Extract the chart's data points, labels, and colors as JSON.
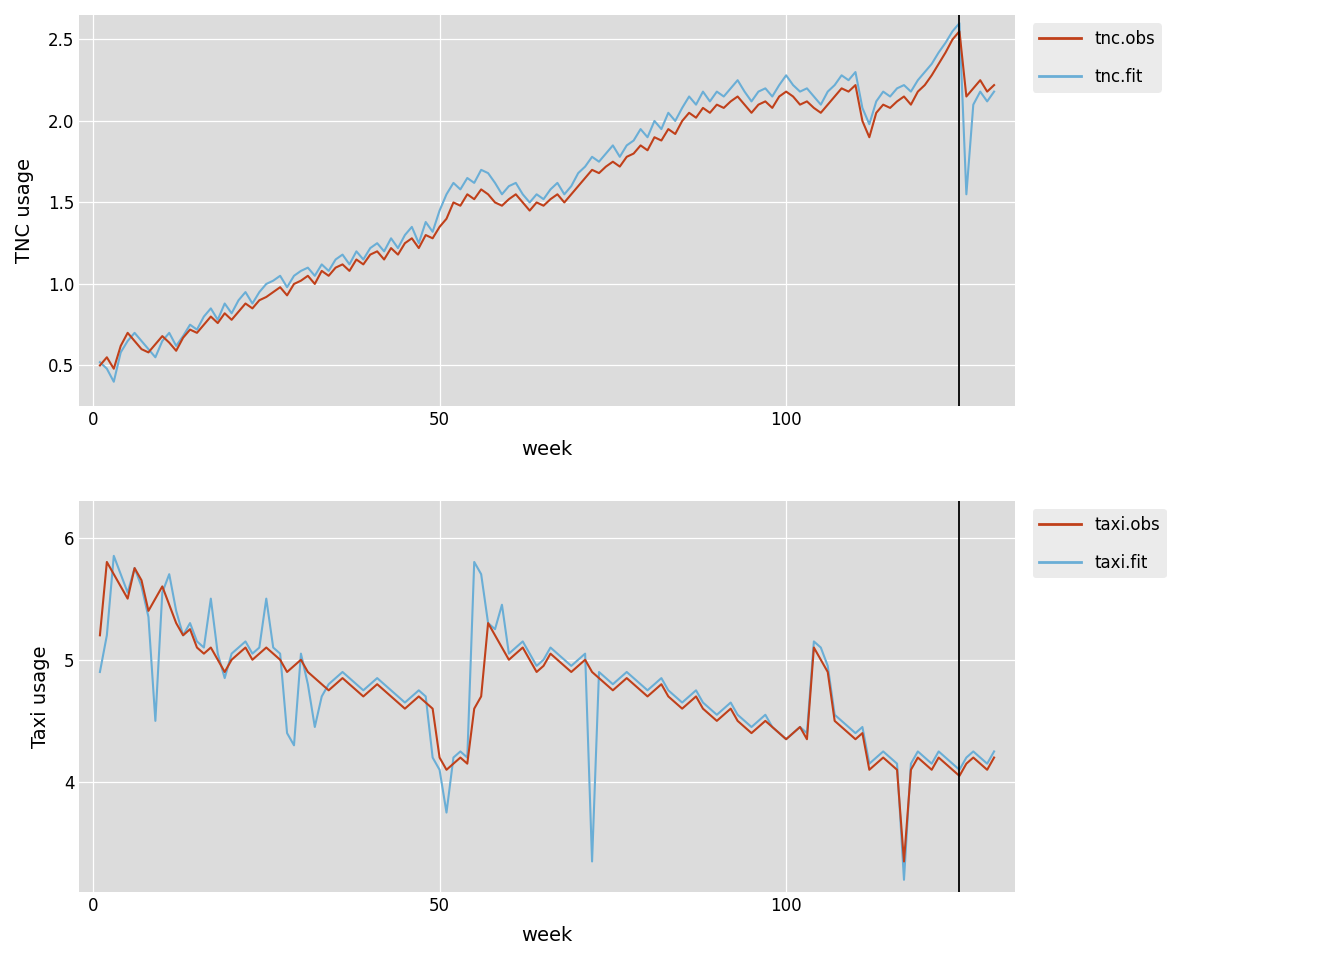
{
  "weeks": [
    1,
    2,
    3,
    4,
    5,
    6,
    7,
    8,
    9,
    10,
    11,
    12,
    13,
    14,
    15,
    16,
    17,
    18,
    19,
    20,
    21,
    22,
    23,
    24,
    25,
    26,
    27,
    28,
    29,
    30,
    31,
    32,
    33,
    34,
    35,
    36,
    37,
    38,
    39,
    40,
    41,
    42,
    43,
    44,
    45,
    46,
    47,
    48,
    49,
    50,
    51,
    52,
    53,
    54,
    55,
    56,
    57,
    58,
    59,
    60,
    61,
    62,
    63,
    64,
    65,
    66,
    67,
    68,
    69,
    70,
    71,
    72,
    73,
    74,
    75,
    76,
    77,
    78,
    79,
    80,
    81,
    82,
    83,
    84,
    85,
    86,
    87,
    88,
    89,
    90,
    91,
    92,
    93,
    94,
    95,
    96,
    97,
    98,
    99,
    100,
    101,
    102,
    103,
    104,
    105,
    106,
    107,
    108,
    109,
    110,
    111,
    112,
    113,
    114,
    115,
    116,
    117,
    118,
    119,
    120,
    121,
    122,
    123,
    124,
    125,
    126,
    127,
    128,
    129,
    130
  ],
  "tnc_obs": [
    0.5,
    0.55,
    0.48,
    0.62,
    0.7,
    0.65,
    0.6,
    0.58,
    0.63,
    0.68,
    0.64,
    0.59,
    0.67,
    0.72,
    0.7,
    0.75,
    0.8,
    0.76,
    0.82,
    0.78,
    0.83,
    0.88,
    0.85,
    0.9,
    0.92,
    0.95,
    0.98,
    0.93,
    1.0,
    1.02,
    1.05,
    1.0,
    1.08,
    1.05,
    1.1,
    1.12,
    1.08,
    1.15,
    1.12,
    1.18,
    1.2,
    1.15,
    1.22,
    1.18,
    1.25,
    1.28,
    1.22,
    1.3,
    1.28,
    1.35,
    1.4,
    1.5,
    1.48,
    1.55,
    1.52,
    1.58,
    1.55,
    1.5,
    1.48,
    1.52,
    1.55,
    1.5,
    1.45,
    1.5,
    1.48,
    1.52,
    1.55,
    1.5,
    1.55,
    1.6,
    1.65,
    1.7,
    1.68,
    1.72,
    1.75,
    1.72,
    1.78,
    1.8,
    1.85,
    1.82,
    1.9,
    1.88,
    1.95,
    1.92,
    2.0,
    2.05,
    2.02,
    2.08,
    2.05,
    2.1,
    2.08,
    2.12,
    2.15,
    2.1,
    2.05,
    2.1,
    2.12,
    2.08,
    2.15,
    2.18,
    2.15,
    2.1,
    2.12,
    2.08,
    2.05,
    2.1,
    2.15,
    2.2,
    2.18,
    2.22,
    2.0,
    1.9,
    2.05,
    2.1,
    2.08,
    2.12,
    2.15,
    2.1,
    2.18,
    2.22,
    2.28,
    2.35,
    2.42,
    2.5,
    2.55,
    2.15,
    2.2,
    2.25,
    2.18,
    2.22
  ],
  "tnc_fit": [
    0.52,
    0.48,
    0.4,
    0.58,
    0.65,
    0.7,
    0.65,
    0.6,
    0.55,
    0.65,
    0.7,
    0.62,
    0.68,
    0.75,
    0.72,
    0.8,
    0.85,
    0.78,
    0.88,
    0.82,
    0.9,
    0.95,
    0.88,
    0.95,
    1.0,
    1.02,
    1.05,
    0.98,
    1.05,
    1.08,
    1.1,
    1.05,
    1.12,
    1.08,
    1.15,
    1.18,
    1.12,
    1.2,
    1.15,
    1.22,
    1.25,
    1.2,
    1.28,
    1.22,
    1.3,
    1.35,
    1.25,
    1.38,
    1.32,
    1.45,
    1.55,
    1.62,
    1.58,
    1.65,
    1.62,
    1.7,
    1.68,
    1.62,
    1.55,
    1.6,
    1.62,
    1.55,
    1.5,
    1.55,
    1.52,
    1.58,
    1.62,
    1.55,
    1.6,
    1.68,
    1.72,
    1.78,
    1.75,
    1.8,
    1.85,
    1.78,
    1.85,
    1.88,
    1.95,
    1.9,
    2.0,
    1.95,
    2.05,
    2.0,
    2.08,
    2.15,
    2.1,
    2.18,
    2.12,
    2.18,
    2.15,
    2.2,
    2.25,
    2.18,
    2.12,
    2.18,
    2.2,
    2.15,
    2.22,
    2.28,
    2.22,
    2.18,
    2.2,
    2.15,
    2.1,
    2.18,
    2.22,
    2.28,
    2.25,
    2.3,
    2.08,
    1.98,
    2.12,
    2.18,
    2.15,
    2.2,
    2.22,
    2.18,
    2.25,
    2.3,
    2.35,
    2.42,
    2.48,
    2.55,
    2.6,
    1.55,
    2.1,
    2.18,
    2.12,
    2.18
  ],
  "taxi_obs": [
    5.2,
    5.8,
    5.7,
    5.6,
    5.5,
    5.75,
    5.65,
    5.4,
    5.5,
    5.6,
    5.45,
    5.3,
    5.2,
    5.25,
    5.1,
    5.05,
    5.1,
    5.0,
    4.9,
    5.0,
    5.05,
    5.1,
    5.0,
    5.05,
    5.1,
    5.05,
    5.0,
    4.9,
    4.95,
    5.0,
    4.9,
    4.85,
    4.8,
    4.75,
    4.8,
    4.85,
    4.8,
    4.75,
    4.7,
    4.75,
    4.8,
    4.75,
    4.7,
    4.65,
    4.6,
    4.65,
    4.7,
    4.65,
    4.6,
    4.2,
    4.1,
    4.15,
    4.2,
    4.15,
    4.6,
    4.7,
    5.3,
    5.2,
    5.1,
    5.0,
    5.05,
    5.1,
    5.0,
    4.9,
    4.95,
    5.05,
    5.0,
    4.95,
    4.9,
    4.95,
    5.0,
    4.9,
    4.85,
    4.8,
    4.75,
    4.8,
    4.85,
    4.8,
    4.75,
    4.7,
    4.75,
    4.8,
    4.7,
    4.65,
    4.6,
    4.65,
    4.7,
    4.6,
    4.55,
    4.5,
    4.55,
    4.6,
    4.5,
    4.45,
    4.4,
    4.45,
    4.5,
    4.45,
    4.4,
    4.35,
    4.4,
    4.45,
    4.35,
    5.1,
    5.0,
    4.9,
    4.5,
    4.45,
    4.4,
    4.35,
    4.4,
    4.1,
    4.15,
    4.2,
    4.15,
    4.1,
    3.35,
    4.1,
    4.2,
    4.15,
    4.1,
    4.2,
    4.15,
    4.1,
    4.05,
    4.15,
    4.2,
    4.15,
    4.1,
    4.2
  ],
  "taxi_fit": [
    4.9,
    5.2,
    5.85,
    5.7,
    5.55,
    5.75,
    5.6,
    5.35,
    4.5,
    5.55,
    5.7,
    5.4,
    5.2,
    5.3,
    5.15,
    5.1,
    5.5,
    5.05,
    4.85,
    5.05,
    5.1,
    5.15,
    5.05,
    5.1,
    5.5,
    5.1,
    5.05,
    4.4,
    4.3,
    5.05,
    4.8,
    4.45,
    4.7,
    4.8,
    4.85,
    4.9,
    4.85,
    4.8,
    4.75,
    4.8,
    4.85,
    4.8,
    4.75,
    4.7,
    4.65,
    4.7,
    4.75,
    4.7,
    4.2,
    4.1,
    3.75,
    4.2,
    4.25,
    4.2,
    5.8,
    5.7,
    5.3,
    5.25,
    5.45,
    5.05,
    5.1,
    5.15,
    5.05,
    4.95,
    5.0,
    5.1,
    5.05,
    5.0,
    4.95,
    5.0,
    5.05,
    3.35,
    4.9,
    4.85,
    4.8,
    4.85,
    4.9,
    4.85,
    4.8,
    4.75,
    4.8,
    4.85,
    4.75,
    4.7,
    4.65,
    4.7,
    4.75,
    4.65,
    4.6,
    4.55,
    4.6,
    4.65,
    4.55,
    4.5,
    4.45,
    4.5,
    4.55,
    4.45,
    4.4,
    4.35,
    4.4,
    4.45,
    4.4,
    5.15,
    5.1,
    4.95,
    4.55,
    4.5,
    4.45,
    4.4,
    4.45,
    4.15,
    4.2,
    4.25,
    4.2,
    4.15,
    3.2,
    4.15,
    4.25,
    4.2,
    4.15,
    4.25,
    4.2,
    4.15,
    4.1,
    4.2,
    4.25,
    4.2,
    4.15,
    4.25
  ],
  "vline_x": 125,
  "tnc_ylabel": "TNC usage",
  "taxi_ylabel": "Taxi usage",
  "xlabel": "week",
  "tnc_ylim": [
    0.25,
    2.65
  ],
  "taxi_ylim": [
    3.1,
    6.3
  ],
  "tnc_yticks": [
    0.5,
    1.0,
    1.5,
    2.0,
    2.5
  ],
  "taxi_yticks": [
    4.0,
    5.0,
    6.0
  ],
  "xticks": [
    0,
    50,
    100
  ],
  "obs_color": "#C0401A",
  "fit_color": "#6aaed6",
  "vline_color": "#000000",
  "bg_color": "#DCDCDC",
  "legend_bg": "#EBEBEB",
  "obs_lw": 1.5,
  "fit_lw": 1.5
}
